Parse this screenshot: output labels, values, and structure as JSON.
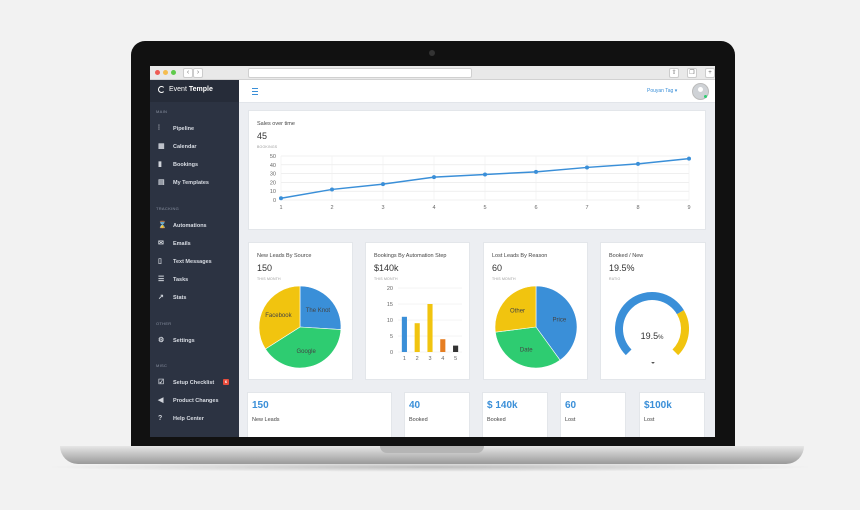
{
  "app": {
    "brand_prefix": "Event",
    "brand_name": "Temple"
  },
  "colors": {
    "accent": "#3a8fd8",
    "sidebar": "#2c3342",
    "yellow": "#f1c40f",
    "green": "#2ecc71",
    "orange": "#e67e22",
    "dark": "#333333"
  },
  "sidebar": {
    "sections": [
      {
        "label": "MAIN",
        "items": [
          {
            "label": "Pipeline",
            "icon": "pipeline-icon"
          },
          {
            "label": "Calendar",
            "icon": "calendar-icon"
          },
          {
            "label": "Bookings",
            "icon": "bookmark-icon"
          },
          {
            "label": "My Templates",
            "icon": "templates-icon"
          }
        ]
      },
      {
        "label": "TRACKING",
        "items": [
          {
            "label": "Automations",
            "icon": "hourglass-icon"
          },
          {
            "label": "Emails",
            "icon": "envelope-icon"
          },
          {
            "label": "Text Messages",
            "icon": "phone-icon"
          },
          {
            "label": "Tasks",
            "icon": "tasks-icon"
          },
          {
            "label": "Stats",
            "icon": "stats-icon"
          }
        ]
      },
      {
        "label": "OTHER",
        "items": [
          {
            "label": "Settings",
            "icon": "gear-icon"
          }
        ]
      },
      {
        "label": "MISC",
        "items": [
          {
            "label": "Setup Checklist",
            "icon": "checklist-icon",
            "badge": "6"
          },
          {
            "label": "Product Changes",
            "icon": "megaphone-icon"
          },
          {
            "label": "Help Center",
            "icon": "question-icon"
          }
        ]
      }
    ]
  },
  "topbar": {
    "user": "Pouyan Tag ▾"
  },
  "sales": {
    "title": "Sales over time",
    "value": "45",
    "sub": "BOOKINGS",
    "chart_data": {
      "type": "line",
      "x": [
        1,
        2,
        3,
        4,
        5,
        6,
        7,
        8,
        9
      ],
      "y": [
        2,
        12,
        18,
        26,
        29,
        32,
        37,
        41,
        47
      ],
      "yticks": [
        0,
        10,
        20,
        30,
        40,
        50
      ],
      "ylim": [
        0,
        50
      ],
      "color": "#3a8fd8"
    }
  },
  "leads_source": {
    "title": "New Leads By Source",
    "value": "150",
    "sub": "THIS MONTH",
    "chart_data": {
      "type": "pie",
      "labels": [
        "The Knot",
        "Google",
        "Facebook"
      ],
      "values": [
        26,
        40,
        34
      ],
      "colors": [
        "#3a8fd8",
        "#2ecc71",
        "#f1c40f"
      ]
    }
  },
  "automation": {
    "title": "Bookings By Automation Step",
    "value": "$140k",
    "sub": "THIS MONTH",
    "chart_data": {
      "type": "bar",
      "categories": [
        "1",
        "2",
        "3",
        "4",
        "5"
      ],
      "values": [
        11,
        9,
        15,
        4,
        2
      ],
      "colors": [
        "#3a8fd8",
        "#f1c40f",
        "#f1c40f",
        "#e67e22",
        "#333333"
      ],
      "yticks": [
        0,
        5,
        10,
        15,
        20
      ],
      "ylim": [
        0,
        20
      ]
    }
  },
  "lost_reason": {
    "title": "Lost Leads By Reason",
    "value": "60",
    "sub": "THIS MONTH",
    "chart_data": {
      "type": "pie",
      "labels": [
        "Price",
        "Date",
        "Other"
      ],
      "values": [
        40,
        33,
        27
      ],
      "colors": [
        "#3a8fd8",
        "#2ecc71",
        "#f1c40f"
      ]
    }
  },
  "booked_ratio": {
    "title": "Booked / New",
    "value": "19.5%",
    "sub": "RATIO",
    "gauge_value": "19.5",
    "gauge_unit": "%",
    "gauge_fill": 0.72
  },
  "stats": [
    {
      "value": "150",
      "label": "New Leads"
    },
    {
      "value": "40",
      "label": "Booked"
    },
    {
      "value": "$ 140k",
      "label": "Booked"
    },
    {
      "value": "60",
      "label": "Lost"
    },
    {
      "value": "$100k",
      "label": "Lost"
    }
  ]
}
